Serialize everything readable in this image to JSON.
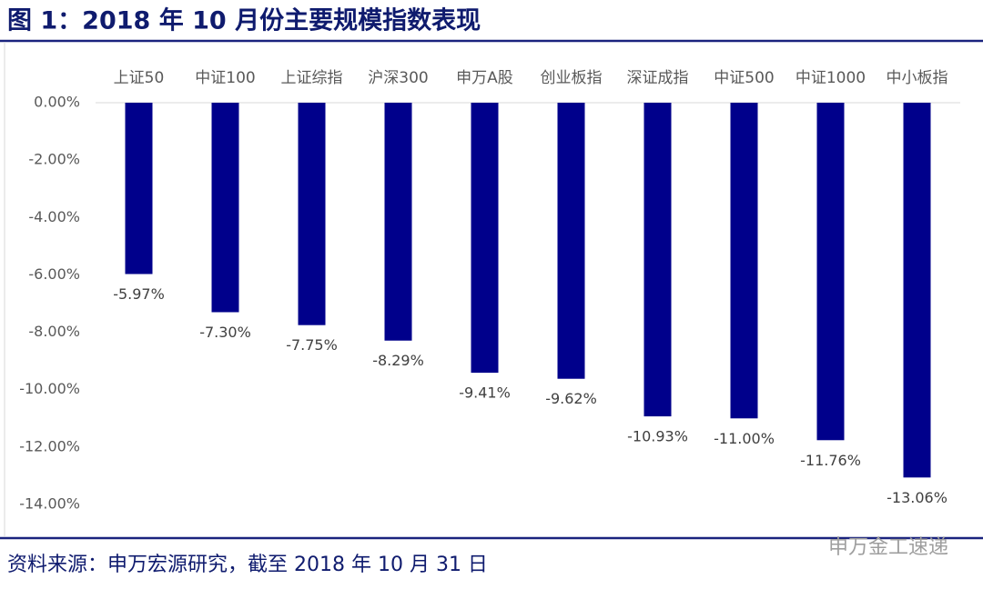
{
  "chart_data": {
    "type": "bar",
    "title": "图 1：2018 年 10 月份主要规模指数表现",
    "source": "资料来源：申万宏源研究，截至 2018 年 10 月 31 日",
    "watermark": "申万金工速递",
    "categories": [
      "上证50",
      "中证100",
      "上证综指",
      "沪深300",
      "申万A股",
      "创业板指",
      "深证成指",
      "中证500",
      "中证1000",
      "中小板指"
    ],
    "values": [
      -5.97,
      -7.3,
      -7.75,
      -8.29,
      -9.41,
      -9.62,
      -10.93,
      -11.0,
      -11.76,
      -13.06
    ],
    "value_labels": [
      "-5.97%",
      "-7.30%",
      "-7.75%",
      "-8.29%",
      "-9.41%",
      "-9.62%",
      "-10.93%",
      "-11.00%",
      "-11.76%",
      "-13.06%"
    ],
    "color": "#00008b",
    "ylim": [
      -14,
      0
    ],
    "yticks": [
      {
        "value": 0,
        "label": "0.00%"
      },
      {
        "value": -2,
        "label": "-2.00%"
      },
      {
        "value": -4,
        "label": "-4.00%"
      },
      {
        "value": -6,
        "label": "-6.00%"
      },
      {
        "value": -8,
        "label": "-8.00%"
      },
      {
        "value": -10,
        "label": "-10.00%"
      },
      {
        "value": -12,
        "label": "-12.00%"
      },
      {
        "value": -14,
        "label": "-14.00%"
      }
    ],
    "grid": false
  }
}
